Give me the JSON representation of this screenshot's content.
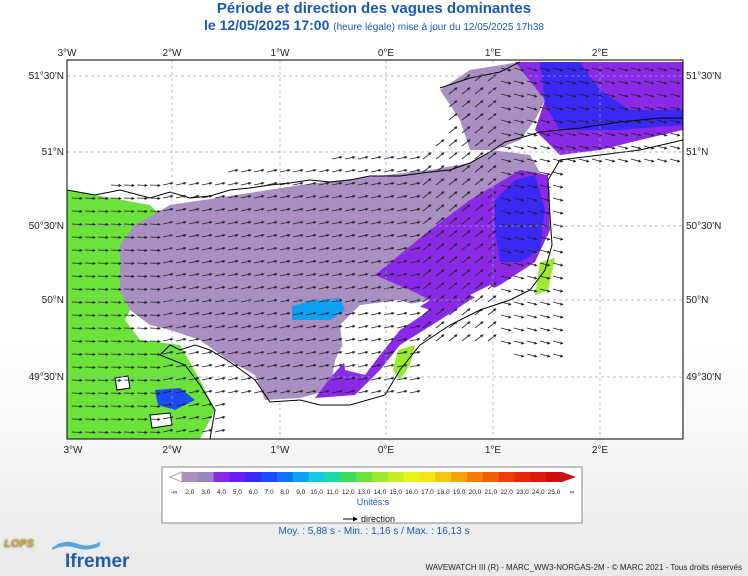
{
  "header": {
    "title": "Période et direction des vagues dominantes",
    "subtitle_main": "le 12/05/2025 17:00",
    "subtitle_small": "(heure légale) mise à jour du 12/05/2025 17h38"
  },
  "axes": {
    "lon_labels": [
      "3°W",
      "2°W",
      "1°W",
      "0°E",
      "1°E",
      "2°E"
    ],
    "lat_labels": [
      "51°30'N",
      "51°N",
      "50°30'N",
      "50°N",
      "49°30'N"
    ]
  },
  "legend": {
    "min_label": "-∞",
    "max_label": "∞",
    "ticks": [
      "2,0",
      "3,0",
      "4,0",
      "5,0",
      "6,0",
      "7,0",
      "8,0",
      "9,0",
      "10,0",
      "11,0",
      "12,0",
      "13,0",
      "14,0",
      "15,0",
      "16,0",
      "17,0",
      "18,0",
      "19,0",
      "20,0",
      "21,0",
      "22,0",
      "23,0",
      "24,0",
      "25,0"
    ],
    "colors": [
      "#a98fc2",
      "#9a84bd",
      "#8b2ae6",
      "#6a1cf2",
      "#3a28f5",
      "#1a4cf8",
      "#0f74f5",
      "#0ea1f2",
      "#15c6e8",
      "#1dd7a8",
      "#3fdc5c",
      "#6be33a",
      "#9cea2f",
      "#c8ef25",
      "#eaf21c",
      "#f7e415",
      "#f7c40f",
      "#f7a10b",
      "#f47f08",
      "#f05e06",
      "#ea3f05",
      "#e52805",
      "#db1a0a",
      "#cc0e0e"
    ],
    "units": "Unités:s",
    "arrow_label": "direction"
  },
  "stats": "Moy. : 5,88 s   -   Min. : 1,16 s / Max. : 16,13 s",
  "credit": "WAVEWATCH III (R) - MARC_WW3-NORGAS-2M - © MARC 2021 - Tous droits réservés",
  "logos": {
    "lops": "LOPS",
    "ifremer": "Ifremer"
  }
}
